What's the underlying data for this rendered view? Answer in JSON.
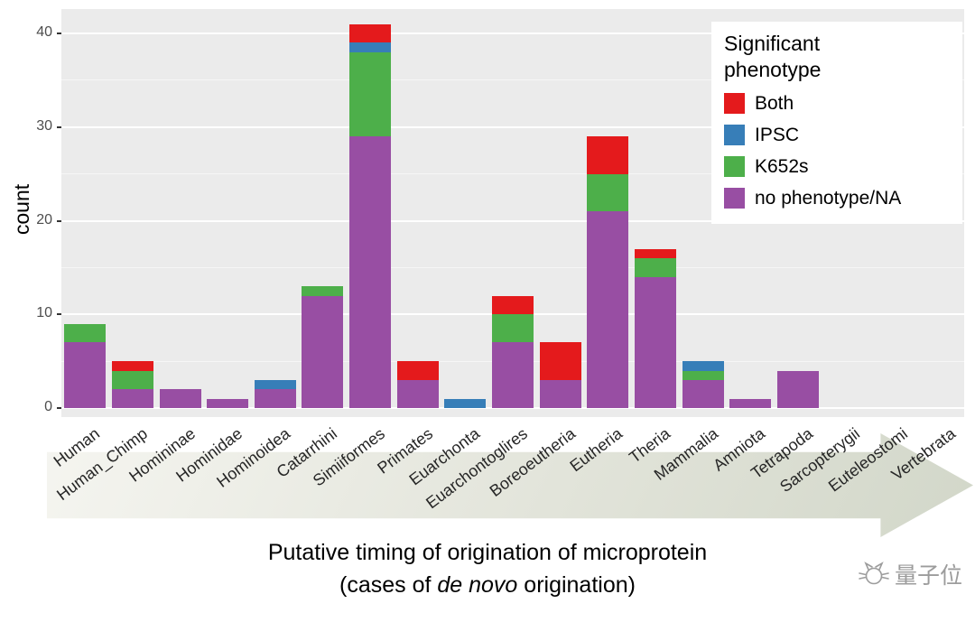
{
  "chart_data": {
    "type": "bar",
    "stacked": true,
    "ylabel": "count",
    "xlabel_line1": "Putative timing of origination of microprotein",
    "xlabel_line2_prefix": "(cases of ",
    "xlabel_line2_italic": "de novo",
    "xlabel_line2_suffix": " origination)",
    "legend_title": "Significant phenotype",
    "legend_position": "top-right-inside",
    "grid": true,
    "ylim": [
      0,
      42
    ],
    "yticks": [
      0,
      10,
      20,
      30,
      40
    ],
    "categories": [
      "Human",
      "Human_Chimp",
      "Homininae",
      "Hominidae",
      "Hominoidea",
      "Catarrhini",
      "Simiiformes",
      "Primates",
      "Euarchonta",
      "Euarchontoglires",
      "Boreoeutheria",
      "Eutheria",
      "Theria",
      "Mammalia",
      "Amniota",
      "Tetrapoda",
      "Sarcopterygii",
      "Euteleostomi",
      "Vertebrata"
    ],
    "series": [
      {
        "name": "no phenotype/NA",
        "color": "#984EA3",
        "values": [
          7,
          2,
          2,
          1,
          2,
          12,
          29,
          3,
          0,
          7,
          3,
          21,
          14,
          3,
          1,
          4,
          0,
          0,
          0
        ]
      },
      {
        "name": "K652s",
        "color": "#4DAF4A",
        "values": [
          2,
          2,
          0,
          0,
          0,
          1,
          9,
          0,
          0,
          3,
          0,
          4,
          2,
          1,
          0,
          0,
          0,
          0,
          0
        ]
      },
      {
        "name": "IPSC",
        "color": "#377EB8",
        "values": [
          0,
          0,
          0,
          0,
          1,
          0,
          1,
          0,
          1,
          0,
          0,
          0,
          0,
          1,
          0,
          0,
          0,
          0,
          0
        ]
      },
      {
        "name": "Both",
        "color": "#E41A1C",
        "values": [
          0,
          1,
          0,
          0,
          0,
          0,
          2,
          2,
          0,
          2,
          4,
          4,
          1,
          0,
          0,
          0,
          0,
          0,
          0
        ]
      }
    ],
    "legend_order": [
      "Both",
      "IPSC",
      "K652s",
      "no phenotype/NA"
    ],
    "panel_background": "#EBEBEB",
    "gridline_color": "#FFFFFF"
  },
  "watermark": {
    "text": "量子位"
  }
}
